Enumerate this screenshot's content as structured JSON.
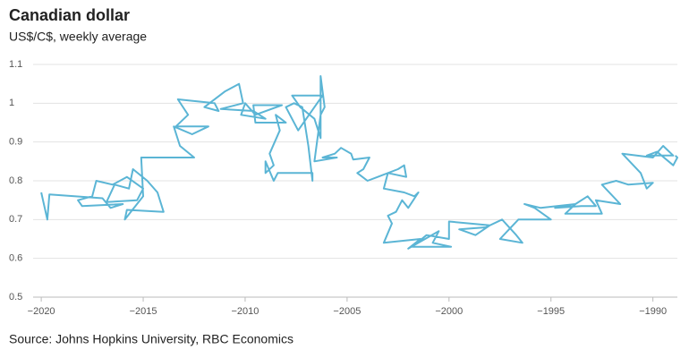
{
  "chart_data": {
    "type": "line",
    "title": "Canadian dollar",
    "subtitle": "US$/C$, weekly average",
    "source": "Source: Johns Hopkins University, RBC Economics",
    "color": "#5bb5d5",
    "grid": true,
    "xlim": [
      -2020.4,
      -1988.8
    ],
    "ylim": [
      0.5,
      1.1
    ],
    "xticks": [
      {
        "value": -2020,
        "label": "−2020"
      },
      {
        "value": -2015,
        "label": "−2015"
      },
      {
        "value": -2010,
        "label": "−2010"
      },
      {
        "value": -2005,
        "label": "−2005"
      },
      {
        "value": -2000,
        "label": "−2000"
      },
      {
        "value": -1995,
        "label": "−1995"
      },
      {
        "value": -1990,
        "label": "−1990"
      }
    ],
    "yticks": [
      0.5,
      0.6,
      0.7,
      0.8,
      0.9,
      1,
      1.1
    ],
    "x": [
      -2020,
      -2019.7,
      -2019.6,
      -2017,
      -2016.6,
      -2016,
      -2018,
      -2018.2,
      -2017.5,
      -2017.3,
      -2016.5,
      -2015.8,
      -2015,
      -2015.3,
      -2016.8,
      -2016.4,
      -2015.7,
      -2015.5,
      -2014.8,
      -2014.3,
      -2014,
      -2015.8,
      -2015.9,
      -2015,
      -2015.1,
      -2012.5,
      -2013.2,
      -2013.5,
      -2012.6,
      -2011.8,
      -2013.4,
      -2012.8,
      -2013.3,
      -2011.5,
      -2011.3,
      -2012,
      -2011,
      -2010.3,
      -2010.1,
      -2011.2,
      -2009.6,
      -2009,
      -2010.2,
      -2010,
      -2009.5,
      -2008.2,
      -2009.6,
      -2009.5,
      -2008,
      -2008.5,
      -2008.3,
      -2008.8,
      -2008.6,
      -2009,
      -2009,
      -2008.6,
      -2008.4,
      -2006.7,
      -2006.7,
      -2006.9,
      -2007.2,
      -2007.6,
      -2008,
      -2007.4,
      -2006.2,
      -2007.7,
      -2007.3,
      -2006.6,
      -2006.3,
      -2006.3,
      -2006.1,
      -2006.3,
      -2006.6,
      -2005.5,
      -2006.2,
      -2005.6,
      -2005.3,
      -2004.8,
      -2004.7,
      -2003.9,
      -2004.2,
      -2004.5,
      -2004,
      -2003.5,
      -2002.5,
      -2002.2,
      -2002.1,
      -2003,
      -2003.2,
      -2002.2,
      -2001.7,
      -2001.5,
      -2002,
      -2002.3,
      -2002.6,
      -2003,
      -2002.8,
      -2003.2,
      -2001.4,
      -2002,
      -2000.5,
      -2000.8,
      -1999.9,
      -2001.8,
      -2001.1,
      -2000,
      -2000,
      -1998,
      -1998.7,
      -1999.5,
      -1998.2,
      -1997.4,
      -1996.7,
      -1996.4,
      -1997.5,
      -1996.6,
      -1995,
      -1995.8,
      -1996.3,
      -1995.5,
      -1993.8,
      -1994.8,
      -1993.5,
      -1992.8,
      -1993.2,
      -1993.8,
      -1994.3,
      -1992.5,
      -1992.8,
      -1991.6,
      -1992.5,
      -1991.8,
      -1991.2,
      -1990,
      -1990.3,
      -1990.6,
      -1991.5,
      -1990,
      -1989.5,
      -1989,
      -1990.3,
      -1989.8,
      -1989,
      -1988.8,
      -1988.9
    ],
    "values": [
      0.77,
      0.7,
      0.765,
      0.755,
      0.73,
      0.74,
      0.735,
      0.75,
      0.76,
      0.8,
      0.79,
      0.81,
      0.78,
      0.75,
      0.745,
      0.79,
      0.78,
      0.83,
      0.8,
      0.77,
      0.72,
      0.725,
      0.7,
      0.76,
      0.86,
      0.86,
      0.89,
      0.94,
      0.92,
      0.94,
      0.94,
      0.97,
      1.01,
      1.0,
      0.98,
      0.99,
      1.03,
      1.05,
      1.0,
      0.985,
      0.98,
      0.96,
      0.97,
      1.0,
      0.97,
      0.995,
      0.995,
      0.95,
      0.95,
      0.97,
      0.93,
      0.87,
      0.84,
      0.82,
      0.85,
      0.8,
      0.82,
      0.82,
      0.8,
      0.89,
      0.99,
      1.0,
      0.99,
      0.93,
      1.02,
      1.02,
      0.99,
      0.96,
      0.91,
      1.07,
      0.99,
      0.97,
      0.85,
      0.86,
      0.86,
      0.87,
      0.885,
      0.87,
      0.855,
      0.86,
      0.83,
      0.82,
      0.8,
      0.81,
      0.83,
      0.84,
      0.81,
      0.82,
      0.78,
      0.77,
      0.76,
      0.77,
      0.73,
      0.75,
      0.72,
      0.71,
      0.69,
      0.64,
      0.65,
      0.625,
      0.67,
      0.64,
      0.63,
      0.63,
      0.66,
      0.65,
      0.695,
      0.685,
      0.66,
      0.675,
      0.68,
      0.7,
      0.66,
      0.64,
      0.65,
      0.7,
      0.7,
      0.73,
      0.74,
      0.73,
      0.74,
      0.73,
      0.735,
      0.735,
      0.76,
      0.74,
      0.715,
      0.715,
      0.75,
      0.74,
      0.79,
      0.8,
      0.79,
      0.795,
      0.78,
      0.82,
      0.87,
      0.86,
      0.89,
      0.865,
      0.865,
      0.875,
      0.84,
      0.86,
      0.865
    ]
  }
}
